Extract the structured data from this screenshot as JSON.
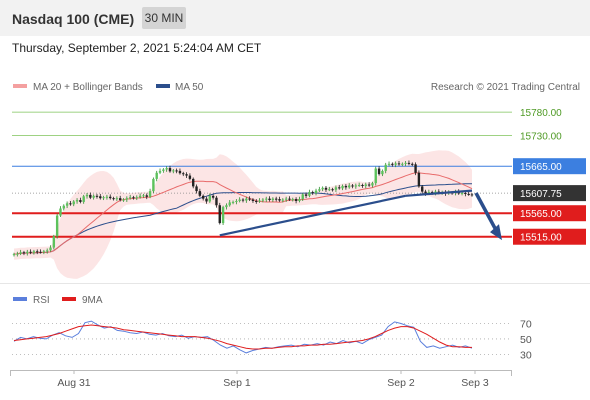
{
  "header": {
    "title": "Nasdaq 100 (CME)",
    "timeframe": "30 MIN",
    "datetime": "Thursday, September 2, 2021 5:24:04 AM CET"
  },
  "legend": {
    "ma20": "MA 20 + Bollinger Bands",
    "ma50": "MA 50",
    "credit": "Research © 2021 Trading Central",
    "rsi": "RSI",
    "rsi_ma": "9MA"
  },
  "colors": {
    "ma20": "#e86a6a",
    "bands": "#fbdcdc",
    "ma50": "#2b4e8c",
    "trend": "#2b4e8c",
    "resistance": "#7ec35a",
    "pivot": "#3c7fe0",
    "support": "#e01d1d",
    "last": "#333333",
    "rsi": "#5b7fdc",
    "rsi_ma": "#e01d1d"
  },
  "chart_data": [
    {
      "type": "candlestick",
      "x_ticks": [
        "Aug 31",
        "Sep 1",
        "Sep 2",
        "Sep 3"
      ],
      "ylim": [
        15440,
        15810
      ],
      "levels": [
        {
          "value": 15780.0,
          "label": "15780.00",
          "kind": "resistance"
        },
        {
          "value": 15730.0,
          "label": "15730.00",
          "kind": "resistance"
        },
        {
          "value": 15665.0,
          "label": "15665.00",
          "kind": "pivot"
        },
        {
          "value": 15607.75,
          "label": "15607.75",
          "kind": "last"
        },
        {
          "value": 15565.0,
          "label": "15565.00",
          "kind": "support"
        },
        {
          "value": 15515.0,
          "label": "15515.00",
          "kind": "support"
        }
      ],
      "series": [
        {
          "name": "MA 20 + Bollinger Bands"
        },
        {
          "name": "MA 50"
        }
      ],
      "close": [
        15478,
        15479,
        15482,
        15480,
        15483,
        15481,
        15484,
        15483,
        15482,
        15484,
        15486,
        15492,
        15516,
        15560,
        15575,
        15581,
        15586,
        15584,
        15590,
        15593,
        15589,
        15601,
        15604,
        15598,
        15602,
        15601,
        15597,
        15599,
        15600,
        15597,
        15596,
        15597,
        15593,
        15594,
        15597,
        15599,
        15598,
        15599,
        15602,
        15603,
        15600,
        15612,
        15638,
        15651,
        15655,
        15658,
        15661,
        15654,
        15656,
        15655,
        15650,
        15648,
        15645,
        15638,
        15622,
        15612,
        15602,
        15596,
        15590,
        15602,
        15598,
        15582,
        15544,
        15578,
        15582,
        15588,
        15589,
        15591,
        15594,
        15592,
        15596,
        15594,
        15591,
        15590,
        15592,
        15594,
        15596,
        15593,
        15596,
        15595,
        15592,
        15594,
        15596,
        15594,
        15595,
        15591,
        15595,
        15605,
        15602,
        15610,
        15608,
        15613,
        15616,
        15619,
        15615,
        15616,
        15615,
        15620,
        15618,
        15623,
        15620,
        15624,
        15622,
        15624,
        15625,
        15623,
        15626,
        15624,
        15629,
        15660,
        15648,
        15655,
        15668,
        15670,
        15668,
        15671,
        15669,
        15670,
        15672,
        15670,
        15669,
        15651,
        15622,
        15611,
        15607,
        15610,
        15608,
        15611,
        15608,
        15610,
        15607,
        15609,
        15608,
        15611,
        15607,
        15608,
        15606,
        15605,
        15604
      ]
    },
    {
      "type": "line",
      "title": "RSI",
      "ylim": [
        15,
        90
      ],
      "y_ticks": [
        70,
        50,
        30
      ],
      "series": [
        {
          "name": "RSI",
          "values": [
            47,
            52,
            50,
            53,
            51,
            50,
            55,
            58,
            54,
            52,
            57,
            71,
            73,
            68,
            64,
            66,
            61,
            60,
            58,
            57,
            59,
            56,
            55,
            57,
            54,
            53,
            55,
            51,
            53,
            52,
            53,
            48,
            42,
            38,
            41,
            36,
            32,
            35,
            37,
            39,
            38,
            40,
            41,
            42,
            40,
            43,
            42,
            44,
            42,
            46,
            44,
            48,
            45,
            47,
            44,
            49,
            52,
            55,
            66,
            72,
            70,
            67,
            65,
            47,
            39,
            41,
            38,
            40,
            42,
            39,
            41,
            38
          ]
        },
        {
          "name": "9MA",
          "values": [
            48,
            49,
            50,
            51,
            52,
            53,
            55,
            57,
            60,
            63,
            66,
            67,
            68,
            67,
            66,
            65,
            64,
            62,
            61,
            60,
            59,
            58,
            57,
            56,
            55,
            54,
            53,
            53,
            53,
            52,
            51,
            49,
            47,
            44,
            42,
            40,
            38,
            37,
            37,
            38,
            38,
            39,
            40,
            40,
            41,
            41,
            42,
            42,
            43,
            43,
            44,
            45,
            46,
            47,
            48,
            50,
            53,
            57,
            61,
            64,
            66,
            66,
            64,
            60,
            56,
            51,
            46,
            42,
            40,
            40,
            39,
            39
          ]
        }
      ]
    }
  ]
}
